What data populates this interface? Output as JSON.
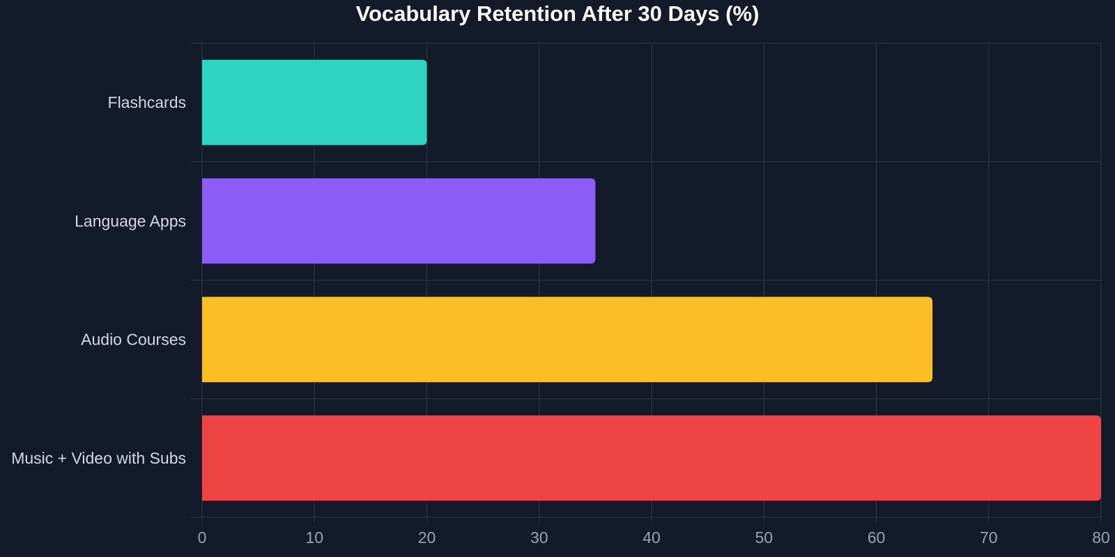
{
  "chart_data": {
    "type": "bar",
    "orientation": "horizontal",
    "title": "Vocabulary Retention After 30 Days (%)",
    "xlabel": "",
    "ylabel": "",
    "categories": [
      "Flashcards",
      "Language Apps",
      "Audio Courses",
      "Music + Video with Subs"
    ],
    "values": [
      20,
      35,
      65,
      80
    ],
    "colors": [
      "#2dd4bf",
      "#8b5cf6",
      "#fbbf24",
      "#ef4444"
    ],
    "xlim": [
      0,
      80
    ],
    "xticks": [
      0,
      10,
      20,
      30,
      40,
      50,
      60,
      70,
      80
    ],
    "grid": true,
    "legend": "none",
    "background": "#131a2a"
  }
}
